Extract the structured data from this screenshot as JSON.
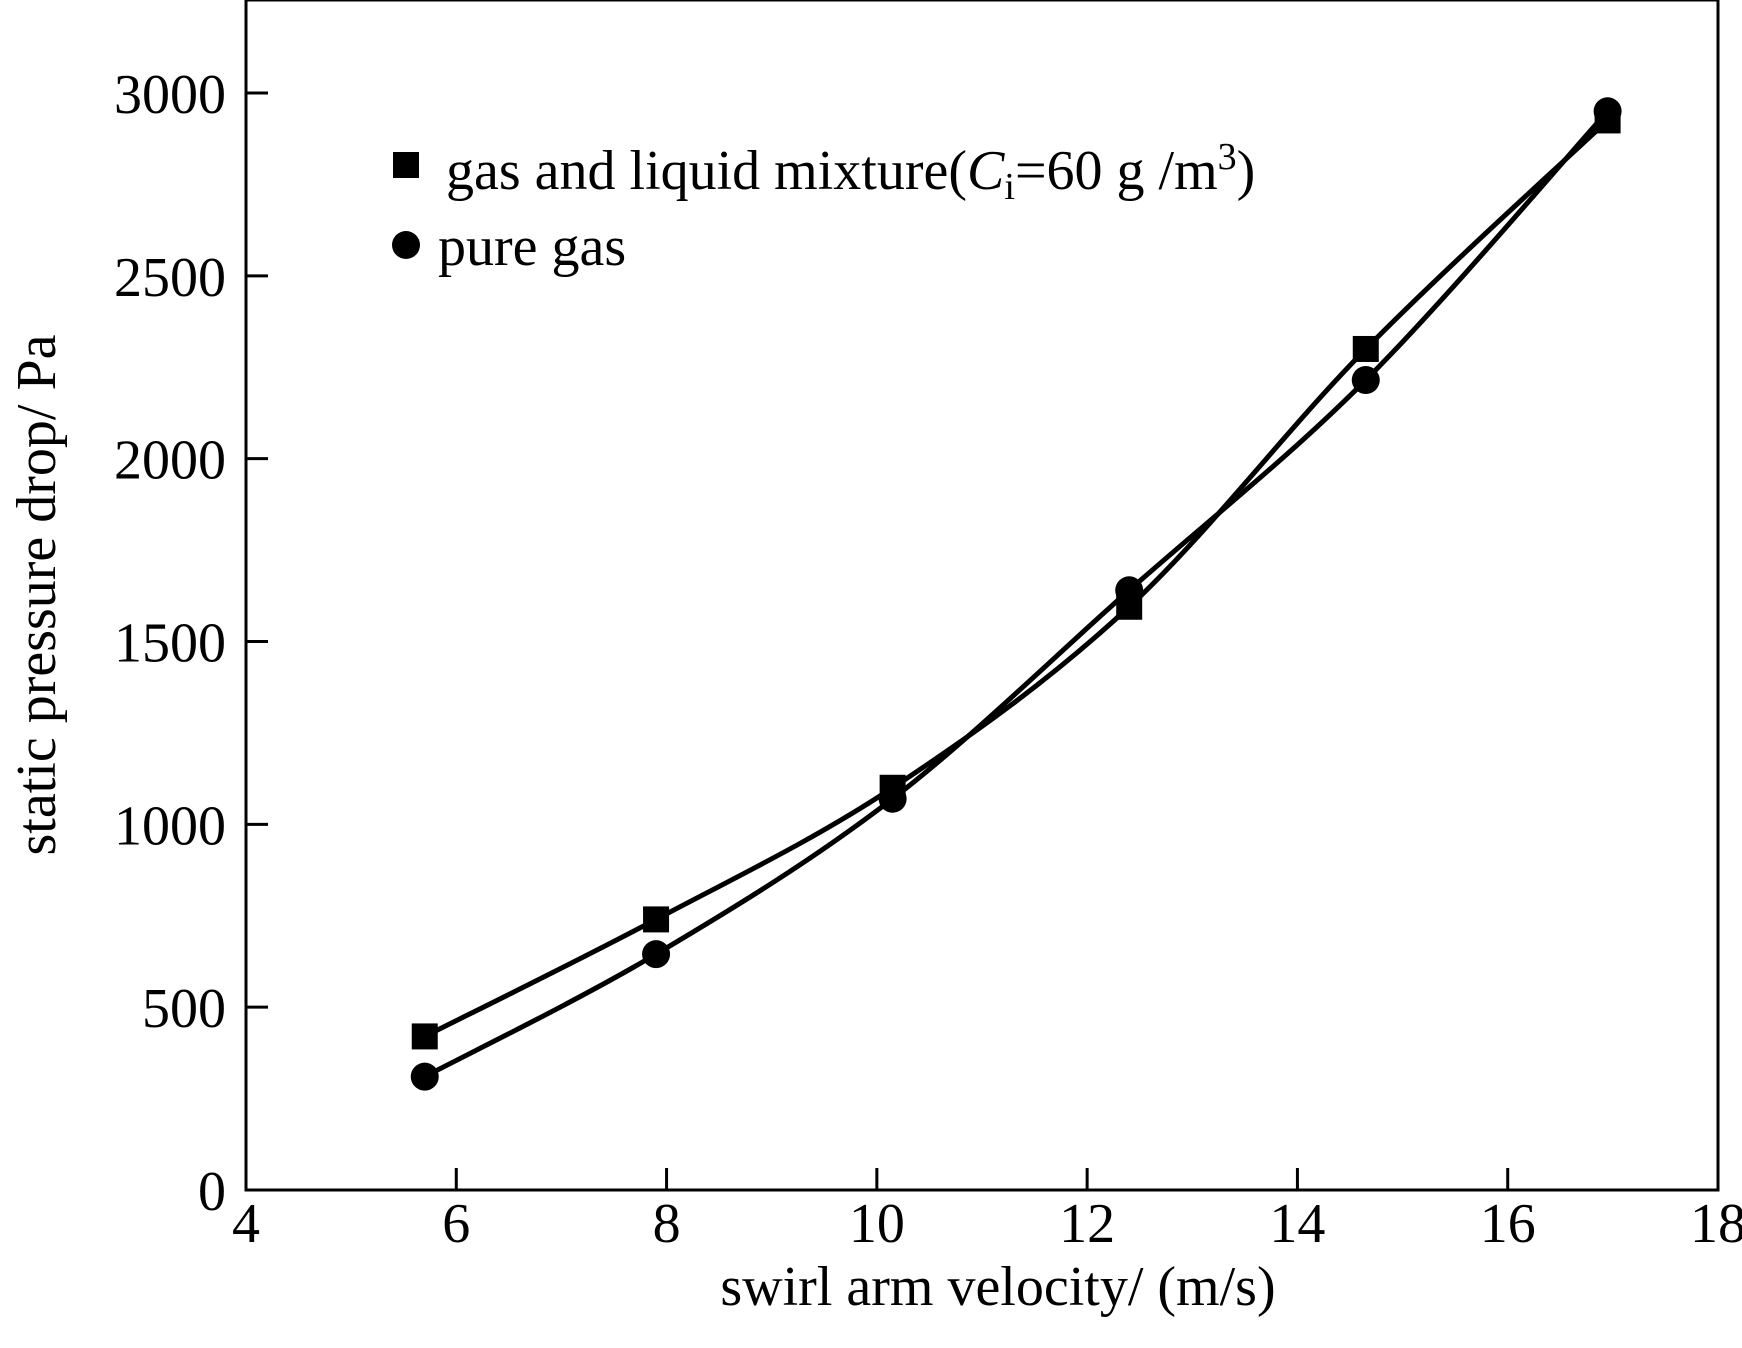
{
  "chart_data": {
    "type": "line",
    "title": "",
    "xlabel": "swirl arm velocity/ (m/s)",
    "ylabel": "static pressure drop/ Pa",
    "xlim": [
      4,
      18
    ],
    "ylim": [
      0,
      3000
    ],
    "x_ticks": [
      4,
      6,
      8,
      10,
      12,
      14,
      16,
      18
    ],
    "y_ticks": [
      0,
      500,
      1000,
      1500,
      2000,
      2500,
      3000
    ],
    "grid": false,
    "legend_position": "top-left",
    "series": [
      {
        "name": "gas and liquid mixture",
        "marker": "square",
        "x": [
          5.7,
          7.9,
          10.15,
          12.4,
          14.65,
          16.95
        ],
        "y": [
          420,
          740,
          1100,
          1595,
          2300,
          2925
        ]
      },
      {
        "name": "pure gas",
        "marker": "circle",
        "x": [
          5.7,
          7.9,
          10.15,
          12.4,
          14.65,
          16.95
        ],
        "y": [
          310,
          645,
          1070,
          1640,
          2215,
          2950
        ]
      }
    ],
    "legend": {
      "mixture_prefix": "gas and liquid mixture(",
      "mixture_var": "C",
      "mixture_sub": "i",
      "mixture_mid": "=60 g /m",
      "mixture_sup": "3",
      "mixture_suffix": ")",
      "pure_gas": "pure gas"
    }
  }
}
